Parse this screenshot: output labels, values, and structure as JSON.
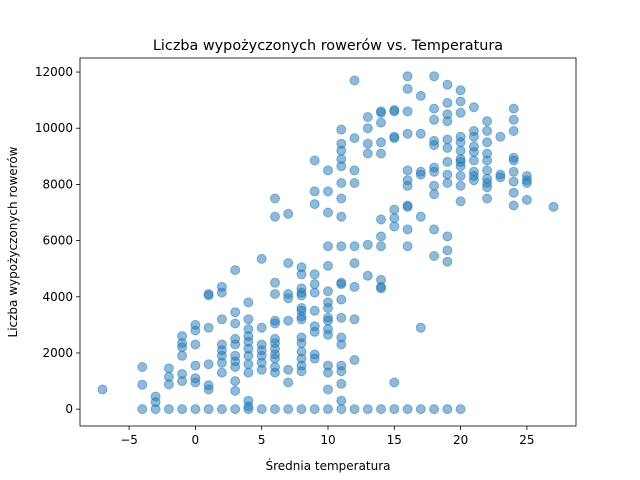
{
  "chart_data": {
    "type": "scatter",
    "title": "Liczba wypożyczonych rowerów vs. Temperatura",
    "xlabel": "Średnia temperatura",
    "ylabel": "Liczba wypożyczonych rowerów",
    "xlim": [
      -8.7,
      28.7
    ],
    "ylim": [
      -600,
      12500
    ],
    "xticks": [
      -5,
      0,
      5,
      10,
      15,
      20,
      25
    ],
    "yticks": [
      0,
      2000,
      4000,
      6000,
      8000,
      10000,
      12000
    ],
    "xtick_labels": [
      "−5",
      "0",
      "5",
      "10",
      "15",
      "20",
      "25"
    ],
    "ytick_labels": [
      "0",
      "2000",
      "4000",
      "6000",
      "8000",
      "10000",
      "12000"
    ],
    "grid": false,
    "legend": "none",
    "marker_color": "#1f77b4",
    "marker_alpha": 0.5,
    "points": [
      [
        -7,
        700
      ],
      [
        -4,
        1500
      ],
      [
        -4,
        870
      ],
      [
        -4,
        0
      ],
      [
        -3,
        450
      ],
      [
        -3,
        250
      ],
      [
        -3,
        0
      ],
      [
        -2,
        1450
      ],
      [
        -2,
        1150
      ],
      [
        -2,
        880
      ],
      [
        -2,
        0
      ],
      [
        -1,
        2600
      ],
      [
        -1,
        2350
      ],
      [
        -1,
        2200
      ],
      [
        -1,
        1900
      ],
      [
        -1,
        1250
      ],
      [
        -1,
        1000
      ],
      [
        -1,
        0
      ],
      [
        0,
        3000
      ],
      [
        0,
        2800
      ],
      [
        0,
        2300
      ],
      [
        0,
        1550
      ],
      [
        0,
        1100
      ],
      [
        0,
        950
      ],
      [
        0,
        0
      ],
      [
        1,
        4100
      ],
      [
        1,
        4050
      ],
      [
        1,
        2900
      ],
      [
        1,
        1600
      ],
      [
        1,
        850
      ],
      [
        1,
        700
      ],
      [
        1,
        0
      ],
      [
        2,
        4350
      ],
      [
        2,
        4150
      ],
      [
        2,
        3200
      ],
      [
        2,
        2300
      ],
      [
        2,
        2100
      ],
      [
        2,
        1900
      ],
      [
        2,
        1650
      ],
      [
        2,
        1300
      ],
      [
        2,
        0
      ],
      [
        3,
        4950
      ],
      [
        3,
        3450
      ],
      [
        3,
        3050
      ],
      [
        3,
        2500
      ],
      [
        3,
        2300
      ],
      [
        3,
        1900
      ],
      [
        3,
        1700
      ],
      [
        3,
        1500
      ],
      [
        3,
        1000
      ],
      [
        3,
        650
      ],
      [
        3,
        0
      ],
      [
        4,
        3800
      ],
      [
        4,
        3200
      ],
      [
        4,
        2850
      ],
      [
        4,
        2600
      ],
      [
        4,
        2400
      ],
      [
        4,
        2150
      ],
      [
        4,
        1900
      ],
      [
        4,
        1600
      ],
      [
        4,
        1300
      ],
      [
        4,
        300
      ],
      [
        4,
        100
      ],
      [
        4,
        0
      ],
      [
        5,
        5350
      ],
      [
        5,
        2900
      ],
      [
        5,
        2300
      ],
      [
        5,
        2100
      ],
      [
        5,
        1900
      ],
      [
        5,
        1650
      ],
      [
        5,
        1400
      ],
      [
        5,
        0
      ],
      [
        6,
        7500
      ],
      [
        6,
        6850
      ],
      [
        6,
        4500
      ],
      [
        6,
        4100
      ],
      [
        6,
        3150
      ],
      [
        6,
        3050
      ],
      [
        6,
        2500
      ],
      [
        6,
        2350
      ],
      [
        6,
        2150
      ],
      [
        6,
        1950
      ],
      [
        6,
        1800
      ],
      [
        6,
        1500
      ],
      [
        6,
        1300
      ],
      [
        6,
        0
      ],
      [
        7,
        6950
      ],
      [
        7,
        5200
      ],
      [
        7,
        4100
      ],
      [
        7,
        3950
      ],
      [
        7,
        3150
      ],
      [
        7,
        1400
      ],
      [
        7,
        950
      ],
      [
        7,
        0
      ],
      [
        8,
        5050
      ],
      [
        8,
        4800
      ],
      [
        8,
        4300
      ],
      [
        8,
        4150
      ],
      [
        8,
        4050
      ],
      [
        8,
        3600
      ],
      [
        8,
        3500
      ],
      [
        8,
        3300
      ],
      [
        8,
        3200
      ],
      [
        8,
        2550
      ],
      [
        8,
        2350
      ],
      [
        8,
        2050
      ],
      [
        8,
        1800
      ],
      [
        8,
        1550
      ],
      [
        8,
        1350
      ],
      [
        8,
        0
      ],
      [
        9,
        8850
      ],
      [
        9,
        7750
      ],
      [
        9,
        7300
      ],
      [
        9,
        4800
      ],
      [
        9,
        4450
      ],
      [
        9,
        4150
      ],
      [
        9,
        3500
      ],
      [
        9,
        2950
      ],
      [
        9,
        2750
      ],
      [
        9,
        1950
      ],
      [
        9,
        1800
      ],
      [
        9,
        0
      ],
      [
        10,
        8500
      ],
      [
        10,
        7750
      ],
      [
        10,
        7000
      ],
      [
        10,
        5800
      ],
      [
        10,
        5100
      ],
      [
        10,
        4200
      ],
      [
        10,
        3800
      ],
      [
        10,
        3600
      ],
      [
        10,
        3250
      ],
      [
        10,
        3150
      ],
      [
        10,
        2850
      ],
      [
        10,
        2650
      ],
      [
        10,
        1550
      ],
      [
        10,
        1300
      ],
      [
        10,
        700
      ],
      [
        10,
        0
      ],
      [
        11,
        9950
      ],
      [
        11,
        9450
      ],
      [
        11,
        9200
      ],
      [
        11,
        8900
      ],
      [
        11,
        8650
      ],
      [
        11,
        8050
      ],
      [
        11,
        7500
      ],
      [
        11,
        6850
      ],
      [
        11,
        5800
      ],
      [
        11,
        4500
      ],
      [
        11,
        4450
      ],
      [
        11,
        3900
      ],
      [
        11,
        3250
      ],
      [
        11,
        2550
      ],
      [
        11,
        2300
      ],
      [
        11,
        1550
      ],
      [
        11,
        1350
      ],
      [
        11,
        900
      ],
      [
        11,
        300
      ],
      [
        11,
        0
      ],
      [
        12,
        11700
      ],
      [
        12,
        9650
      ],
      [
        12,
        8500
      ],
      [
        12,
        8050
      ],
      [
        12,
        5800
      ],
      [
        12,
        5200
      ],
      [
        12,
        4350
      ],
      [
        12,
        3200
      ],
      [
        12,
        1750
      ],
      [
        12,
        0
      ],
      [
        13,
        10400
      ],
      [
        13,
        10000
      ],
      [
        13,
        9450
      ],
      [
        13,
        9100
      ],
      [
        13,
        5850
      ],
      [
        13,
        4750
      ],
      [
        13,
        0
      ],
      [
        14,
        10600
      ],
      [
        14,
        10550
      ],
      [
        14,
        10200
      ],
      [
        14,
        9500
      ],
      [
        14,
        9100
      ],
      [
        14,
        6750
      ],
      [
        14,
        6150
      ],
      [
        14,
        5800
      ],
      [
        14,
        4600
      ],
      [
        14,
        4350
      ],
      [
        14,
        4300
      ],
      [
        14,
        0
      ],
      [
        15,
        10650
      ],
      [
        15,
        10600
      ],
      [
        15,
        9700
      ],
      [
        15,
        9650
      ],
      [
        15,
        7100
      ],
      [
        15,
        6800
      ],
      [
        15,
        6500
      ],
      [
        15,
        950
      ],
      [
        15,
        0
      ],
      [
        16,
        11850
      ],
      [
        16,
        11400
      ],
      [
        16,
        10600
      ],
      [
        16,
        9800
      ],
      [
        16,
        8500
      ],
      [
        16,
        8150
      ],
      [
        16,
        7950
      ],
      [
        16,
        7250
      ],
      [
        16,
        7200
      ],
      [
        16,
        6400
      ],
      [
        16,
        5800
      ],
      [
        16,
        0
      ],
      [
        17,
        11150
      ],
      [
        17,
        9800
      ],
      [
        17,
        8450
      ],
      [
        17,
        8350
      ],
      [
        17,
        6850
      ],
      [
        17,
        2900
      ],
      [
        17,
        0
      ],
      [
        18,
        11850
      ],
      [
        18,
        10700
      ],
      [
        18,
        10300
      ],
      [
        18,
        9550
      ],
      [
        18,
        9400
      ],
      [
        18,
        8600
      ],
      [
        18,
        8450
      ],
      [
        18,
        7950
      ],
      [
        18,
        7650
      ],
      [
        18,
        6400
      ],
      [
        18,
        5450
      ],
      [
        18,
        0
      ],
      [
        19,
        11550
      ],
      [
        19,
        10900
      ],
      [
        19,
        10500
      ],
      [
        19,
        10250
      ],
      [
        19,
        9600
      ],
      [
        19,
        9300
      ],
      [
        19,
        8800
      ],
      [
        19,
        8350
      ],
      [
        19,
        8050
      ],
      [
        19,
        6150
      ],
      [
        19,
        5650
      ],
      [
        19,
        5250
      ],
      [
        19,
        0
      ],
      [
        20,
        11350
      ],
      [
        20,
        10950
      ],
      [
        20,
        10550
      ],
      [
        20,
        9700
      ],
      [
        20,
        9500
      ],
      [
        20,
        9200
      ],
      [
        20,
        8900
      ],
      [
        20,
        8800
      ],
      [
        20,
        8650
      ],
      [
        20,
        8300
      ],
      [
        20,
        7950
      ],
      [
        20,
        7400
      ],
      [
        20,
        0
      ],
      [
        21,
        10750
      ],
      [
        21,
        9900
      ],
      [
        21,
        9700
      ],
      [
        21,
        9350
      ],
      [
        21,
        9150
      ],
      [
        21,
        8850
      ],
      [
        21,
        8450
      ],
      [
        21,
        8300
      ],
      [
        21,
        8150
      ],
      [
        22,
        10250
      ],
      [
        22,
        9900
      ],
      [
        22,
        9500
      ],
      [
        22,
        9100
      ],
      [
        22,
        8850
      ],
      [
        22,
        8500
      ],
      [
        22,
        8200
      ],
      [
        22,
        8050
      ],
      [
        22,
        7900
      ],
      [
        22,
        7500
      ],
      [
        23,
        9700
      ],
      [
        23,
        8350
      ],
      [
        23,
        8250
      ],
      [
        24,
        10700
      ],
      [
        24,
        10300
      ],
      [
        24,
        9900
      ],
      [
        24,
        8950
      ],
      [
        24,
        8850
      ],
      [
        24,
        8450
      ],
      [
        24,
        8100
      ],
      [
        24,
        7700
      ],
      [
        24,
        7250
      ],
      [
        25,
        8300
      ],
      [
        25,
        8150
      ],
      [
        25,
        8050
      ],
      [
        25,
        7450
      ],
      [
        27,
        7200
      ]
    ]
  }
}
